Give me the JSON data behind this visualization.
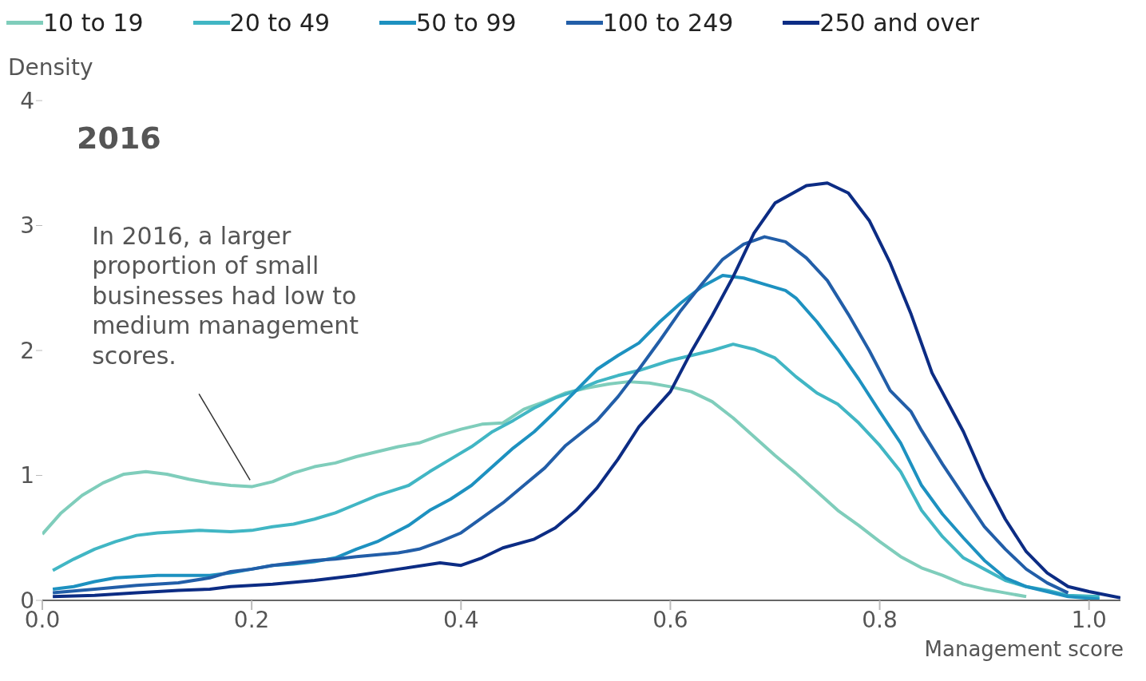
{
  "chart_data": {
    "type": "line",
    "title": "2016",
    "xlabel": "Management score",
    "ylabel": "Density",
    "legend": "top",
    "grid": false,
    "marker": "none",
    "line_style": "solid",
    "xlim": [
      0,
      1.03
    ],
    "xticks": [
      {
        "value": 0,
        "label": "0.0"
      },
      0.2,
      0.4,
      0.6,
      0.8,
      {
        "value": 1,
        "label": "1.0"
      }
    ],
    "ylim": [
      0,
      4
    ],
    "yticks": [
      0,
      1,
      2,
      3,
      4
    ],
    "annotations": [
      {
        "text": "In 2016, a larger proportion of small businesses had low to medium management scores.",
        "x": 0.2,
        "y": 0.95
      }
    ],
    "series": [
      {
        "name": "10 to 19",
        "color": "#7fcdbb",
        "x": [
          0,
          0.018,
          0.038,
          0.058,
          0.078,
          0.099,
          0.119,
          0.14,
          0.16,
          0.18,
          0.2,
          0.22,
          0.24,
          0.26,
          0.28,
          0.3,
          0.32,
          0.34,
          0.36,
          0.38,
          0.4,
          0.42,
          0.44,
          0.46,
          0.48,
          0.5,
          0.52,
          0.54,
          0.56,
          0.58,
          0.6,
          0.62,
          0.64,
          0.66,
          0.68,
          0.7,
          0.72,
          0.74,
          0.76,
          0.78,
          0.8,
          0.82,
          0.84,
          0.86,
          0.88,
          0.9,
          0.92,
          0.94
        ],
        "values": [
          0.53,
          0.7,
          0.84,
          0.94,
          1.01,
          1.03,
          1.01,
          0.97,
          0.94,
          0.92,
          0.91,
          0.95,
          1.02,
          1.07,
          1.1,
          1.15,
          1.19,
          1.23,
          1.26,
          1.32,
          1.37,
          1.41,
          1.42,
          1.53,
          1.59,
          1.66,
          1.7,
          1.73,
          1.75,
          1.74,
          1.71,
          1.67,
          1.59,
          1.46,
          1.31,
          1.16,
          1.02,
          0.87,
          0.72,
          0.6,
          0.47,
          0.35,
          0.26,
          0.2,
          0.13,
          0.09,
          0.06,
          0.03
        ]
      },
      {
        "name": "20 to 49",
        "color": "#41b6c4",
        "x": [
          0.01,
          0.03,
          0.05,
          0.07,
          0.09,
          0.11,
          0.13,
          0.15,
          0.18,
          0.2,
          0.22,
          0.24,
          0.26,
          0.28,
          0.3,
          0.32,
          0.35,
          0.37,
          0.39,
          0.41,
          0.43,
          0.45,
          0.47,
          0.49,
          0.51,
          0.53,
          0.55,
          0.57,
          0.6,
          0.62,
          0.64,
          0.66,
          0.68,
          0.7,
          0.72,
          0.74,
          0.76,
          0.78,
          0.8,
          0.82,
          0.84,
          0.86,
          0.88,
          0.9,
          0.92,
          0.94,
          0.96,
          0.98,
          1.01
        ],
        "values": [
          0.24,
          0.33,
          0.41,
          0.47,
          0.52,
          0.54,
          0.55,
          0.56,
          0.55,
          0.56,
          0.59,
          0.61,
          0.65,
          0.7,
          0.77,
          0.84,
          0.92,
          1.03,
          1.13,
          1.23,
          1.35,
          1.44,
          1.54,
          1.62,
          1.68,
          1.75,
          1.8,
          1.84,
          1.92,
          1.96,
          2,
          2.05,
          2.01,
          1.94,
          1.79,
          1.66,
          1.57,
          1.42,
          1.24,
          1.03,
          0.72,
          0.51,
          0.34,
          0.25,
          0.16,
          0.11,
          0.08,
          0.04,
          0.03
        ]
      },
      {
        "name": "50 to 99",
        "color": "#1d91c0",
        "x": [
          0.01,
          0.03,
          0.05,
          0.07,
          0.09,
          0.11,
          0.13,
          0.16,
          0.18,
          0.2,
          0.22,
          0.24,
          0.26,
          0.28,
          0.3,
          0.32,
          0.35,
          0.37,
          0.39,
          0.41,
          0.43,
          0.45,
          0.47,
          0.49,
          0.51,
          0.53,
          0.55,
          0.57,
          0.59,
          0.61,
          0.63,
          0.65,
          0.67,
          0.69,
          0.71,
          0.72,
          0.74,
          0.76,
          0.78,
          0.8,
          0.82,
          0.84,
          0.86,
          0.88,
          0.9,
          0.92,
          0.94,
          0.96,
          0.98,
          1.01
        ],
        "values": [
          0.09,
          0.11,
          0.15,
          0.18,
          0.19,
          0.2,
          0.2,
          0.2,
          0.22,
          0.25,
          0.28,
          0.29,
          0.31,
          0.34,
          0.41,
          0.47,
          0.6,
          0.72,
          0.81,
          0.92,
          1.07,
          1.22,
          1.35,
          1.51,
          1.68,
          1.85,
          1.96,
          2.06,
          2.23,
          2.38,
          2.51,
          2.6,
          2.58,
          2.53,
          2.48,
          2.42,
          2.23,
          2.01,
          1.77,
          1.51,
          1.26,
          0.92,
          0.69,
          0.5,
          0.32,
          0.18,
          0.11,
          0.07,
          0.03,
          0.01
        ]
      },
      {
        "name": "100 to 249",
        "color": "#225ea8",
        "x": [
          0.01,
          0.05,
          0.09,
          0.13,
          0.16,
          0.18,
          0.2,
          0.22,
          0.24,
          0.26,
          0.28,
          0.3,
          0.34,
          0.36,
          0.38,
          0.4,
          0.42,
          0.44,
          0.46,
          0.48,
          0.5,
          0.53,
          0.55,
          0.57,
          0.59,
          0.61,
          0.63,
          0.65,
          0.67,
          0.69,
          0.71,
          0.73,
          0.75,
          0.77,
          0.79,
          0.81,
          0.83,
          0.84,
          0.86,
          0.88,
          0.9,
          0.92,
          0.94,
          0.96,
          0.98
        ],
        "values": [
          0.06,
          0.09,
          0.12,
          0.14,
          0.18,
          0.23,
          0.25,
          0.28,
          0.3,
          0.32,
          0.33,
          0.35,
          0.38,
          0.41,
          0.47,
          0.54,
          0.66,
          0.78,
          0.92,
          1.06,
          1.24,
          1.44,
          1.63,
          1.85,
          2.08,
          2.32,
          2.53,
          2.73,
          2.85,
          2.91,
          2.87,
          2.74,
          2.56,
          2.29,
          2,
          1.68,
          1.51,
          1.36,
          1.09,
          0.84,
          0.59,
          0.41,
          0.25,
          0.14,
          0.06
        ]
      },
      {
        "name": "250 and over",
        "color": "#0c2c84",
        "x": [
          0.01,
          0.05,
          0.09,
          0.13,
          0.16,
          0.18,
          0.22,
          0.26,
          0.3,
          0.34,
          0.38,
          0.4,
          0.42,
          0.44,
          0.47,
          0.49,
          0.51,
          0.53,
          0.55,
          0.57,
          0.6,
          0.62,
          0.64,
          0.66,
          0.68,
          0.7,
          0.73,
          0.75,
          0.77,
          0.79,
          0.81,
          0.83,
          0.85,
          0.88,
          0.9,
          0.92,
          0.94,
          0.96,
          0.98,
          1,
          1.03
        ],
        "values": [
          0.03,
          0.04,
          0.06,
          0.08,
          0.09,
          0.11,
          0.13,
          0.16,
          0.2,
          0.25,
          0.3,
          0.28,
          0.34,
          0.42,
          0.49,
          0.58,
          0.72,
          0.9,
          1.13,
          1.39,
          1.67,
          1.99,
          2.28,
          2.59,
          2.94,
          3.18,
          3.32,
          3.34,
          3.26,
          3.04,
          2.7,
          2.29,
          1.82,
          1.35,
          0.97,
          0.65,
          0.39,
          0.22,
          0.11,
          0.07,
          0.02
        ]
      }
    ]
  }
}
